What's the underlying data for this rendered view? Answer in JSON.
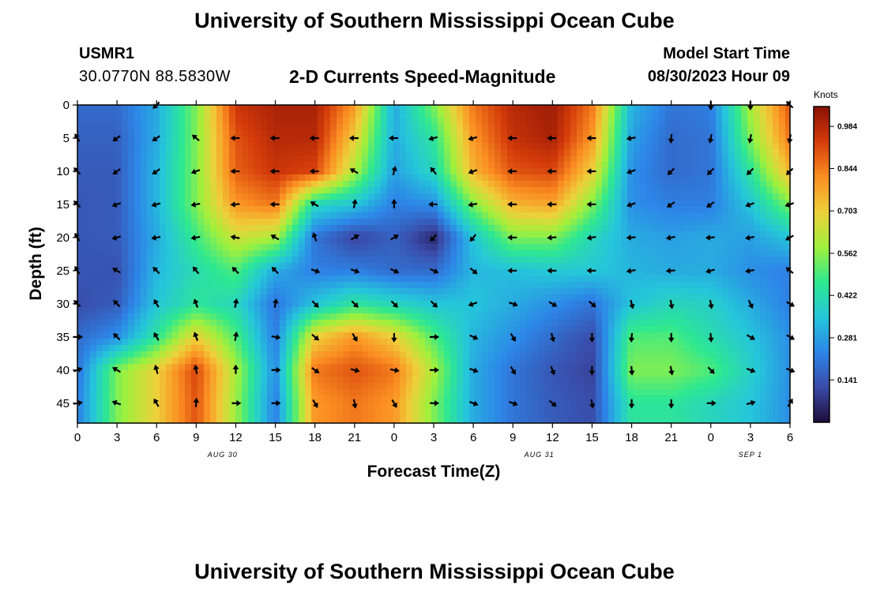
{
  "header": {
    "title": "University of Southern Mississippi Ocean Cube",
    "station": "USMR1",
    "coordinates": "30.0770N  88.5830W",
    "subtitle": "2-D Currents Speed-Magnitude",
    "model_start_label": "Model Start Time",
    "model_start_value": "08/30/2023 Hour 09",
    "footer_title": "University of Southern Mississippi Ocean Cube"
  },
  "colorbar": {
    "units": "Knots",
    "ticks": [
      "0.141",
      "0.281",
      "0.422",
      "0.562",
      "0.703",
      "0.844",
      "0.984"
    ],
    "colors": [
      "#1d0c3a",
      "#3a4ba8",
      "#2d86e8",
      "#25c6da",
      "#2fe890",
      "#a0f03c",
      "#eed03a",
      "#fb8e22",
      "#d43c0a",
      "#8a1005"
    ]
  },
  "chart_data": {
    "type": "heatmap",
    "title": "2-D Currents Speed-Magnitude",
    "xlabel": "Forecast Time(Z)",
    "ylabel": "Depth (ft)",
    "x_tick_labels": [
      "0",
      "3",
      "6",
      "9",
      "12",
      "15",
      "18",
      "21",
      "0",
      "3",
      "6",
      "9",
      "12",
      "15",
      "18",
      "21",
      "0",
      "3",
      "6"
    ],
    "x_hours": [
      0,
      3,
      6,
      9,
      12,
      15,
      18,
      21,
      24,
      27,
      30,
      33,
      36,
      39,
      42,
      45,
      48,
      51,
      54
    ],
    "date_labels": [
      {
        "text": "AUG 30",
        "hour": 11
      },
      {
        "text": "AUG 31",
        "hour": 35
      },
      {
        "text": "SEP 1",
        "hour": 51
      }
    ],
    "y_ticks": [
      0,
      5,
      10,
      15,
      20,
      25,
      30,
      35,
      40,
      45
    ],
    "xlim": [
      0,
      54
    ],
    "ylim": [
      0,
      48
    ],
    "y_inverted": true,
    "value_range_knots": [
      0.0,
      1.05
    ],
    "columns_hours": [
      0,
      3,
      6,
      9,
      12,
      15,
      18,
      21,
      24,
      27,
      30,
      33,
      36,
      39,
      42,
      45,
      48,
      51,
      54
    ],
    "rows_depth_ft": [
      0,
      5,
      10,
      15,
      20,
      25,
      30,
      35,
      40,
      45
    ],
    "speed_knots": [
      [
        0.18,
        0.18,
        0.3,
        0.55,
        0.95,
        1.0,
        1.0,
        0.8,
        0.3,
        0.55,
        0.85,
        0.98,
        1.02,
        0.85,
        0.32,
        0.2,
        0.22,
        0.6,
        0.9
      ],
      [
        0.16,
        0.16,
        0.3,
        0.55,
        0.9,
        0.98,
        0.98,
        0.7,
        0.3,
        0.45,
        0.8,
        0.96,
        1.0,
        0.8,
        0.28,
        0.18,
        0.2,
        0.55,
        0.85
      ],
      [
        0.15,
        0.15,
        0.32,
        0.55,
        0.88,
        0.95,
        0.92,
        0.6,
        0.28,
        0.4,
        0.75,
        0.9,
        0.92,
        0.7,
        0.25,
        0.18,
        0.2,
        0.45,
        0.75
      ],
      [
        0.14,
        0.15,
        0.32,
        0.55,
        0.8,
        0.85,
        0.4,
        0.35,
        0.22,
        0.25,
        0.55,
        0.75,
        0.78,
        0.55,
        0.25,
        0.22,
        0.22,
        0.35,
        0.55
      ],
      [
        0.14,
        0.15,
        0.3,
        0.48,
        0.65,
        0.6,
        0.2,
        0.1,
        0.16,
        0.05,
        0.35,
        0.55,
        0.55,
        0.4,
        0.3,
        0.28,
        0.3,
        0.28,
        0.35
      ],
      [
        0.14,
        0.13,
        0.32,
        0.42,
        0.5,
        0.3,
        0.22,
        0.22,
        0.18,
        0.18,
        0.32,
        0.34,
        0.36,
        0.36,
        0.32,
        0.3,
        0.3,
        0.25,
        0.22
      ],
      [
        0.12,
        0.15,
        0.35,
        0.45,
        0.4,
        0.2,
        0.35,
        0.45,
        0.4,
        0.35,
        0.35,
        0.3,
        0.25,
        0.2,
        0.35,
        0.4,
        0.38,
        0.3,
        0.22
      ],
      [
        0.18,
        0.25,
        0.45,
        0.7,
        0.5,
        0.22,
        0.7,
        0.8,
        0.7,
        0.5,
        0.32,
        0.25,
        0.18,
        0.12,
        0.5,
        0.5,
        0.42,
        0.35,
        0.25
      ],
      [
        0.2,
        0.55,
        0.7,
        0.92,
        0.6,
        0.25,
        0.85,
        0.9,
        0.85,
        0.6,
        0.3,
        0.2,
        0.14,
        0.1,
        0.55,
        0.55,
        0.5,
        0.38,
        0.25
      ],
      [
        0.22,
        0.55,
        0.7,
        0.9,
        0.58,
        0.22,
        0.8,
        0.85,
        0.8,
        0.55,
        0.3,
        0.2,
        0.15,
        0.12,
        0.45,
        0.45,
        0.4,
        0.35,
        0.25
      ]
    ],
    "direction_deg_math": [
      [
        null,
        null,
        225,
        null,
        null,
        null,
        null,
        null,
        null,
        null,
        null,
        null,
        null,
        null,
        null,
        null,
        -90,
        -90,
        135
      ],
      [
        120,
        215,
        215,
        140,
        180,
        180,
        180,
        180,
        180,
        195,
        195,
        180,
        180,
        180,
        190,
        -95,
        -100,
        -100,
        -100
      ],
      [
        135,
        215,
        215,
        200,
        180,
        180,
        180,
        150,
        75,
        130,
        200,
        180,
        180,
        180,
        200,
        225,
        225,
        225,
        225
      ],
      [
        135,
        200,
        195,
        190,
        185,
        180,
        150,
        80,
        90,
        180,
        190,
        180,
        180,
        180,
        200,
        215,
        215,
        200,
        200
      ],
      [
        120,
        195,
        190,
        190,
        170,
        150,
        110,
        30,
        30,
        225,
        230,
        180,
        185,
        190,
        185,
        190,
        185,
        190,
        210
      ],
      [
        120,
        150,
        135,
        130,
        135,
        135,
        -20,
        -20,
        -25,
        -25,
        -40,
        180,
        180,
        180,
        190,
        185,
        195,
        190,
        140
      ],
      [
        135,
        135,
        120,
        110,
        80,
        80,
        -45,
        -45,
        -45,
        -45,
        200,
        -20,
        -30,
        -40,
        -75,
        -80,
        -80,
        -65,
        -30
      ],
      [
        0,
        135,
        120,
        110,
        80,
        -10,
        -40,
        -60,
        -90,
        0,
        -25,
        -60,
        -75,
        -90,
        -95,
        -90,
        -85,
        -30,
        -30
      ],
      [
        20,
        150,
        105,
        100,
        90,
        0,
        -35,
        -15,
        -10,
        0,
        -20,
        -60,
        -70,
        -90,
        -85,
        -80,
        -45,
        -20,
        -20
      ],
      [
        10,
        160,
        120,
        85,
        0,
        0,
        -60,
        -80,
        -60,
        0,
        -20,
        -20,
        -40,
        -80,
        -90,
        -90,
        0,
        15,
        60
      ]
    ]
  }
}
